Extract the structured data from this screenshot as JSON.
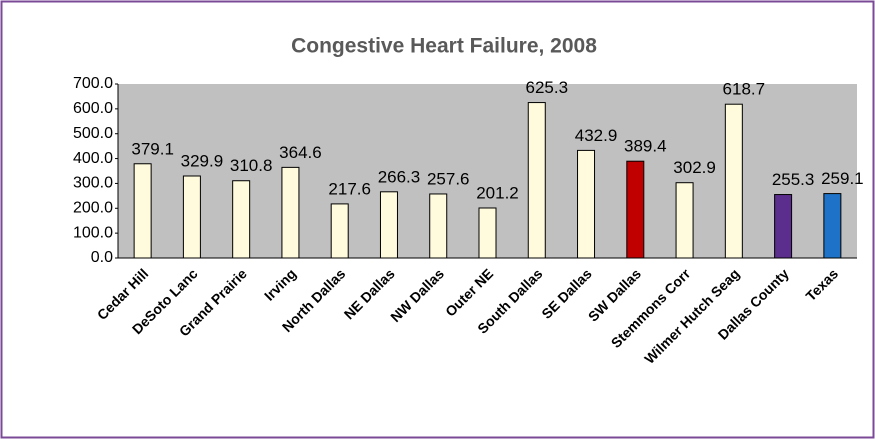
{
  "chart_data": {
    "type": "bar",
    "title": "Congestive Heart Failure, 2008",
    "categories": [
      "Cedar Hill",
      "DeSoto Lanc",
      "Grand Prairie",
      "Irving",
      "North Dallas",
      "NE Dallas",
      "NW Dallas",
      "Outer NE",
      "South Dallas",
      "SE Dallas",
      "SW Dallas",
      "Stemmons Corr",
      "Wilmer Hutch Seag",
      "Dallas County",
      "Texas"
    ],
    "values": [
      379.1,
      329.9,
      310.8,
      364.6,
      217.6,
      266.3,
      257.6,
      201.2,
      625.3,
      432.9,
      389.4,
      302.9,
      618.7,
      255.3,
      259.1
    ],
    "colors": [
      "#fffbdc",
      "#fffbdc",
      "#fffbdc",
      "#fffbdc",
      "#fffbdc",
      "#fffbdc",
      "#fffbdc",
      "#fffbdc",
      "#fffbdc",
      "#fffbdc",
      "#c00000",
      "#fffbdc",
      "#fffbdc",
      "#5b2d8c",
      "#1e73c8"
    ],
    "ylim": [
      0,
      700
    ],
    "yticks": [
      {
        "value": 0,
        "label": "0.0"
      },
      {
        "value": 100,
        "label": "100.0"
      },
      {
        "value": 200,
        "label": "200.0"
      },
      {
        "value": 300,
        "label": "300.0"
      },
      {
        "value": 400,
        "label": "400.0"
      },
      {
        "value": 500,
        "label": "500.0"
      },
      {
        "value": 600,
        "label": "600.0"
      },
      {
        "value": 700,
        "label": "700.0"
      }
    ],
    "grid": false
  }
}
